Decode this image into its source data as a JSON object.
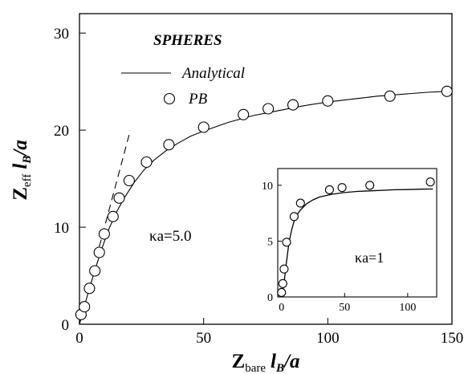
{
  "chart_data": [
    {
      "type": "scatter",
      "title": "",
      "xlabel": {
        "sym": "Z",
        "sub": "bare",
        "unit": "l",
        "unit_sub": "B",
        "tail": "/a"
      },
      "ylabel": {
        "sym": "Z",
        "sub": "eff",
        "unit": "l",
        "unit_sub": "B",
        "tail": "/a"
      },
      "xlim": [
        0,
        150
      ],
      "ylim": [
        0,
        32
      ],
      "xticks": [
        "0",
        "50",
        "100",
        "150"
      ],
      "yticks": [
        "0",
        "10",
        "20",
        "30"
      ],
      "legend_title": "SPHERES",
      "annotation": "κa=5.0",
      "series": [
        {
          "name": "Analytical",
          "style": "line",
          "x": [
            0,
            2,
            4,
            6,
            8,
            10,
            12,
            15,
            18,
            22,
            26,
            30,
            35,
            40,
            45,
            50,
            60,
            70,
            80,
            90,
            100,
            110,
            120,
            130,
            140,
            148
          ],
          "y": [
            0,
            1.9,
            3.7,
            5.4,
            7.0,
            8.5,
            9.9,
            11.6,
            13.0,
            14.6,
            15.9,
            16.9,
            17.9,
            18.7,
            19.4,
            19.9,
            20.8,
            21.5,
            22.0,
            22.5,
            22.9,
            23.2,
            23.5,
            23.7,
            23.9,
            24.0
          ]
        },
        {
          "name": "",
          "style": "dashed",
          "x": [
            8,
            20.5
          ],
          "y": [
            8,
            20
          ]
        },
        {
          "name": "PB",
          "style": "markers",
          "x": [
            0.6,
            2,
            4,
            6.2,
            8,
            10,
            13.5,
            16,
            20,
            27,
            36,
            50,
            66,
            76,
            86,
            100,
            125,
            148
          ],
          "y": [
            1.0,
            1.8,
            3.7,
            5.5,
            7.4,
            9.3,
            11.1,
            13.0,
            14.8,
            16.7,
            18.5,
            20.3,
            21.6,
            22.2,
            22.6,
            23.0,
            23.5,
            24.0
          ]
        }
      ]
    },
    {
      "type": "scatter",
      "inset": true,
      "xlim": [
        -3,
        123
      ],
      "ylim": [
        0,
        11.5
      ],
      "xticks": [
        "0",
        "50",
        "100"
      ],
      "yticks": [
        "0",
        "5",
        "10"
      ],
      "annotation": "κa=1",
      "series": [
        {
          "style": "line",
          "x": [
            0,
            1,
            2,
            3,
            4,
            5,
            6,
            8,
            10,
            12,
            15,
            20,
            25,
            30,
            40,
            50,
            60,
            70,
            80,
            90,
            100,
            110,
            120
          ],
          "y": [
            0,
            0.6,
            1.3,
            2.2,
            3.2,
            4.1,
            4.9,
            6.0,
            6.8,
            7.3,
            7.8,
            8.35,
            8.7,
            8.95,
            9.2,
            9.35,
            9.45,
            9.5,
            9.55,
            9.6,
            9.62,
            9.65,
            9.67
          ]
        },
        {
          "style": "markers",
          "x": [
            0,
            1,
            2,
            4,
            10,
            15,
            38,
            48,
            70,
            118
          ],
          "y": [
            0.4,
            1.2,
            2.5,
            4.9,
            7.2,
            8.4,
            9.6,
            9.8,
            10.0,
            10.3
          ]
        }
      ]
    }
  ]
}
